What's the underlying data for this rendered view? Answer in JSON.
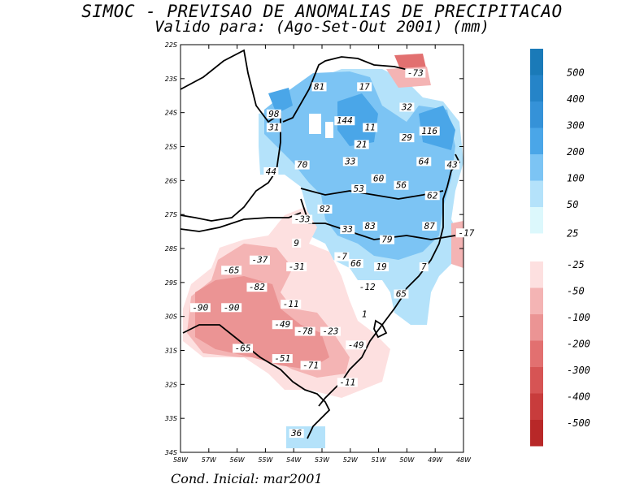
{
  "title": {
    "line1": "SIMOC - PREVISAO DE ANOMALIAS DE PRECIPITACAO",
    "line2": "Valido para: (Ago-Set-Out 2001) (mm)"
  },
  "footer": "Cond. Inicial: mar2001",
  "axes": {
    "lat_ticks": [
      "22S",
      "23S",
      "24S",
      "25S",
      "26S",
      "27S",
      "28S",
      "29S",
      "30S",
      "31S",
      "32S",
      "33S",
      "34S"
    ],
    "lon_ticks": [
      "58W",
      "57W",
      "56W",
      "55W",
      "54W",
      "53W",
      "52W",
      "51W",
      "50W",
      "49W",
      "48W"
    ]
  },
  "colorbar": {
    "positive": [
      {
        "label": "500",
        "color": "#1a7ab8"
      },
      {
        "label": "400",
        "color": "#2584c8"
      },
      {
        "label": "300",
        "color": "#3592d8"
      },
      {
        "label": "200",
        "color": "#4aa6e8"
      },
      {
        "label": "100",
        "color": "#7cc4f4"
      },
      {
        "label": "50",
        "color": "#b4e2fa"
      },
      {
        "label": "25",
        "color": "#dcf8fc"
      }
    ],
    "negative": [
      {
        "label": "-25",
        "color": "#fde0e0"
      },
      {
        "label": "-50",
        "color": "#f4b4b4"
      },
      {
        "label": "-100",
        "color": "#eb9494"
      },
      {
        "label": "-200",
        "color": "#e27070"
      },
      {
        "label": "-300",
        "color": "#d65454"
      },
      {
        "label": "-400",
        "color": "#c83c3c"
      },
      {
        "label": "-500",
        "color": "#b82828"
      }
    ]
  },
  "anomaly_labels": [
    {
      "text": "-73",
      "lon": -49.7,
      "lat": -22.9
    },
    {
      "text": "81",
      "lon": -53.1,
      "lat": -23.3
    },
    {
      "text": "17",
      "lon": -51.5,
      "lat": -23.3
    },
    {
      "text": "32",
      "lon": -50.0,
      "lat": -23.9
    },
    {
      "text": "98",
      "lon": -54.7,
      "lat": -24.1
    },
    {
      "text": "144",
      "lon": -52.2,
      "lat": -24.3
    },
    {
      "text": "31",
      "lon": -54.7,
      "lat": -24.5
    },
    {
      "text": "11",
      "lon": -51.3,
      "lat": -24.5
    },
    {
      "text": "116",
      "lon": -49.2,
      "lat": -24.6
    },
    {
      "text": "29",
      "lon": -50.0,
      "lat": -24.8
    },
    {
      "text": "21",
      "lon": -51.6,
      "lat": -25.0
    },
    {
      "text": "33",
      "lon": -52.0,
      "lat": -25.5
    },
    {
      "text": "70",
      "lon": -53.7,
      "lat": -25.6
    },
    {
      "text": "64",
      "lon": -49.4,
      "lat": -25.5
    },
    {
      "text": "43",
      "lon": -48.4,
      "lat": -25.6
    },
    {
      "text": "44",
      "lon": -54.8,
      "lat": -25.8
    },
    {
      "text": "60",
      "lon": -51.0,
      "lat": -26.0
    },
    {
      "text": "56",
      "lon": -50.2,
      "lat": -26.2
    },
    {
      "text": "53",
      "lon": -51.7,
      "lat": -26.3
    },
    {
      "text": "62",
      "lon": -49.1,
      "lat": -26.5
    },
    {
      "text": "82",
      "lon": -52.9,
      "lat": -26.9
    },
    {
      "text": "-33",
      "lon": -53.7,
      "lat": -27.2
    },
    {
      "text": "33",
      "lon": -52.1,
      "lat": -27.5
    },
    {
      "text": "83",
      "lon": -51.3,
      "lat": -27.4
    },
    {
      "text": "87",
      "lon": -49.2,
      "lat": -27.4
    },
    {
      "text": "-17",
      "lon": -47.9,
      "lat": -27.6
    },
    {
      "text": "79",
      "lon": -50.7,
      "lat": -27.8
    },
    {
      "text": "9",
      "lon": -53.9,
      "lat": -27.9
    },
    {
      "text": "-7",
      "lon": -52.3,
      "lat": -28.3
    },
    {
      "text": "-37",
      "lon": -55.2,
      "lat": -28.4
    },
    {
      "text": "66",
      "lon": -51.8,
      "lat": -28.5
    },
    {
      "text": "19",
      "lon": -50.9,
      "lat": -28.6
    },
    {
      "text": "7",
      "lon": -49.4,
      "lat": -28.6
    },
    {
      "text": "-65",
      "lon": -56.2,
      "lat": -28.7
    },
    {
      "text": "-31",
      "lon": -53.9,
      "lat": -28.6
    },
    {
      "text": "-82",
      "lon": -55.3,
      "lat": -29.2
    },
    {
      "text": "-12",
      "lon": -51.4,
      "lat": -29.2
    },
    {
      "text": "65",
      "lon": -50.2,
      "lat": -29.4
    },
    {
      "text": "-11",
      "lon": -54.1,
      "lat": -29.7
    },
    {
      "text": "-90",
      "lon": -57.3,
      "lat": -29.8
    },
    {
      "text": "-90",
      "lon": -56.2,
      "lat": -29.8
    },
    {
      "text": "1",
      "lon": -51.5,
      "lat": -30.0
    },
    {
      "text": "-49",
      "lon": -54.4,
      "lat": -30.3
    },
    {
      "text": "-78",
      "lon": -53.6,
      "lat": -30.5
    },
    {
      "text": "-23",
      "lon": -52.7,
      "lat": -30.5
    },
    {
      "text": "-49",
      "lon": -51.8,
      "lat": -30.9
    },
    {
      "text": "-65",
      "lon": -55.8,
      "lat": -31.0
    },
    {
      "text": "-51",
      "lon": -54.4,
      "lat": -31.3
    },
    {
      "text": "-71",
      "lon": -53.4,
      "lat": -31.5
    },
    {
      "text": "-11",
      "lon": -52.1,
      "lat": -32.0
    },
    {
      "text": "36",
      "lon": -53.9,
      "lat": -33.5
    }
  ]
}
